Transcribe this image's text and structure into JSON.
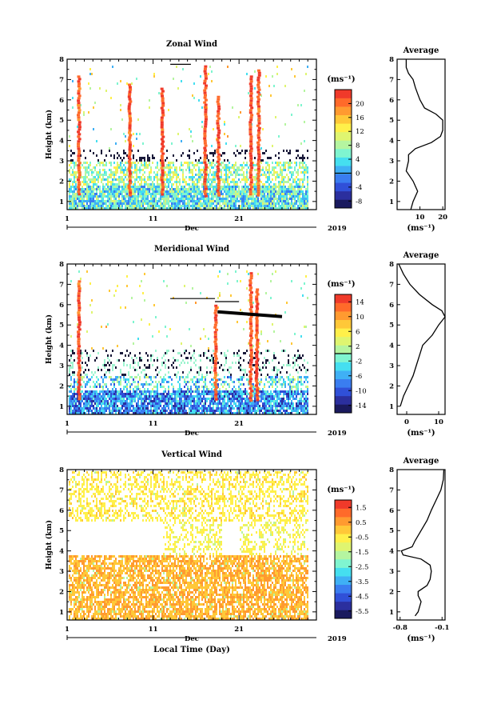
{
  "chart_data": [
    {
      "type": "heatmap",
      "title": "Zonal Wind",
      "ylabel": "Height (km)",
      "ylim": [
        0.6,
        8
      ],
      "yticks": [
        "1",
        "2",
        "3",
        "4",
        "5",
        "6",
        "7",
        "8"
      ],
      "xlim": [
        1,
        30
      ],
      "xticks": [
        "1",
        "11",
        "21"
      ],
      "month": "Dec",
      "year": "2019",
      "colorbar": {
        "unit": "(ms⁻¹)",
        "range": [
          -10,
          24
        ],
        "ticks": [
          "20",
          "16",
          "12",
          "8",
          "4",
          "0",
          "-4",
          "-8"
        ]
      },
      "profile": {
        "title": "Average",
        "xlabel": "(ms⁻¹)",
        "xticks": [
          "10",
          "20"
        ],
        "xlim": [
          0,
          21
        ],
        "height": [
          0.6,
          1.0,
          1.5,
          2.0,
          2.5,
          3.0,
          3.3,
          3.6,
          3.9,
          4.2,
          4.5,
          5.0,
          5.3,
          5.6,
          6.0,
          6.3,
          6.6,
          7.0,
          7.3,
          7.6,
          8.0
        ],
        "values": [
          6,
          7,
          9,
          7,
          4,
          5,
          5,
          8,
          15,
          19,
          20,
          20,
          17,
          12,
          10,
          9,
          8,
          7,
          5,
          4,
          4
        ]
      },
      "features": {
        "red_bursts": [
          {
            "day": 2.3,
            "top": 7.2
          },
          {
            "day": 8.2,
            "top": 6.8
          },
          {
            "day": 12.0,
            "top": 6.6
          },
          {
            "day": 17.0,
            "top": 7.7
          },
          {
            "day": 18.5,
            "top": 6.2
          },
          {
            "day": 22.3,
            "top": 7.2
          },
          {
            "day": 23.2,
            "top": 7.5
          }
        ],
        "shear_line": {
          "day_start": 13.0,
          "day_end": 15.4,
          "height": 7.75
        }
      }
    },
    {
      "type": "heatmap",
      "title": "Meridional Wind",
      "ylabel": "Height (km)",
      "ylim": [
        0.6,
        8
      ],
      "yticks": [
        "1",
        "2",
        "3",
        "4",
        "5",
        "6",
        "7",
        "8"
      ],
      "xlim": [
        1,
        30
      ],
      "xticks": [
        "1",
        "11",
        "21"
      ],
      "month": "Dec",
      "year": "2019",
      "colorbar": {
        "unit": "(ms⁻¹)",
        "range": [
          -16,
          16
        ],
        "ticks": [
          "14",
          "10",
          "6",
          "2",
          "-2",
          "-6",
          "-10",
          "-14"
        ]
      },
      "profile": {
        "title": "Average",
        "xlabel": "(ms⁻¹)",
        "xticks": [
          "0",
          "10"
        ],
        "xlim": [
          -3,
          12
        ],
        "height": [
          1.0,
          1.5,
          2.0,
          2.5,
          3.0,
          3.5,
          4.0,
          4.5,
          5.0,
          5.4,
          5.7,
          6.0,
          6.5,
          7.0,
          7.5,
          8.0
        ],
        "values": [
          -2,
          -1,
          0.5,
          2,
          3,
          4,
          5,
          8,
          10,
          12,
          11,
          8,
          4,
          1,
          -1,
          -2.5
        ]
      },
      "features": {
        "red_bursts": [
          {
            "day": 2.3,
            "top": 7.2
          },
          {
            "day": 18.2,
            "top": 6.0
          },
          {
            "day": 22.3,
            "top": 7.6
          },
          {
            "day": 23.0,
            "top": 6.8
          }
        ],
        "shear_lines": [
          {
            "day_start": 13.0,
            "day_end": 18.2,
            "height": 6.3
          },
          {
            "day_start": 18.2,
            "day_end": 21.0,
            "height": 6.15
          },
          {
            "day_start": 18.5,
            "day_end": 26.0,
            "height": 5.65
          }
        ]
      }
    },
    {
      "type": "heatmap",
      "title": "Vertical Wind",
      "ylabel": "Height (km)",
      "xlabel": "Local Time (Day)",
      "ylim": [
        0.6,
        8
      ],
      "yticks": [
        "1",
        "2",
        "3",
        "4",
        "5",
        "6",
        "7",
        "8"
      ],
      "xlim": [
        1,
        30
      ],
      "xticks": [
        "1",
        "11",
        "21"
      ],
      "month": "Dec",
      "year": "2019",
      "colorbar": {
        "unit": "(ms⁻¹)",
        "range": [
          -6,
          2
        ],
        "ticks": [
          "1.5",
          "0.5",
          "-0.5",
          "-1.5",
          "-2.5",
          "-3.5",
          "-4.5",
          "-5.5"
        ]
      },
      "profile": {
        "title": "Average",
        "xlabel": "(ms⁻¹)",
        "xticks": [
          "-0.8",
          "-0.1"
        ],
        "xlim": [
          -0.85,
          -0.05
        ],
        "height": [
          0.8,
          1.0,
          1.5,
          1.8,
          2.0,
          2.3,
          2.6,
          3.0,
          3.3,
          3.6,
          3.8,
          4.0,
          4.2,
          4.5,
          5.0,
          5.5,
          6.0,
          6.5,
          7.0,
          7.5,
          8.0
        ],
        "values": [
          -0.55,
          -0.5,
          -0.45,
          -0.5,
          -0.5,
          -0.35,
          -0.3,
          -0.28,
          -0.3,
          -0.45,
          -0.75,
          -0.78,
          -0.6,
          -0.55,
          -0.45,
          -0.35,
          -0.28,
          -0.2,
          -0.12,
          -0.08,
          -0.07
        ]
      }
    }
  ]
}
